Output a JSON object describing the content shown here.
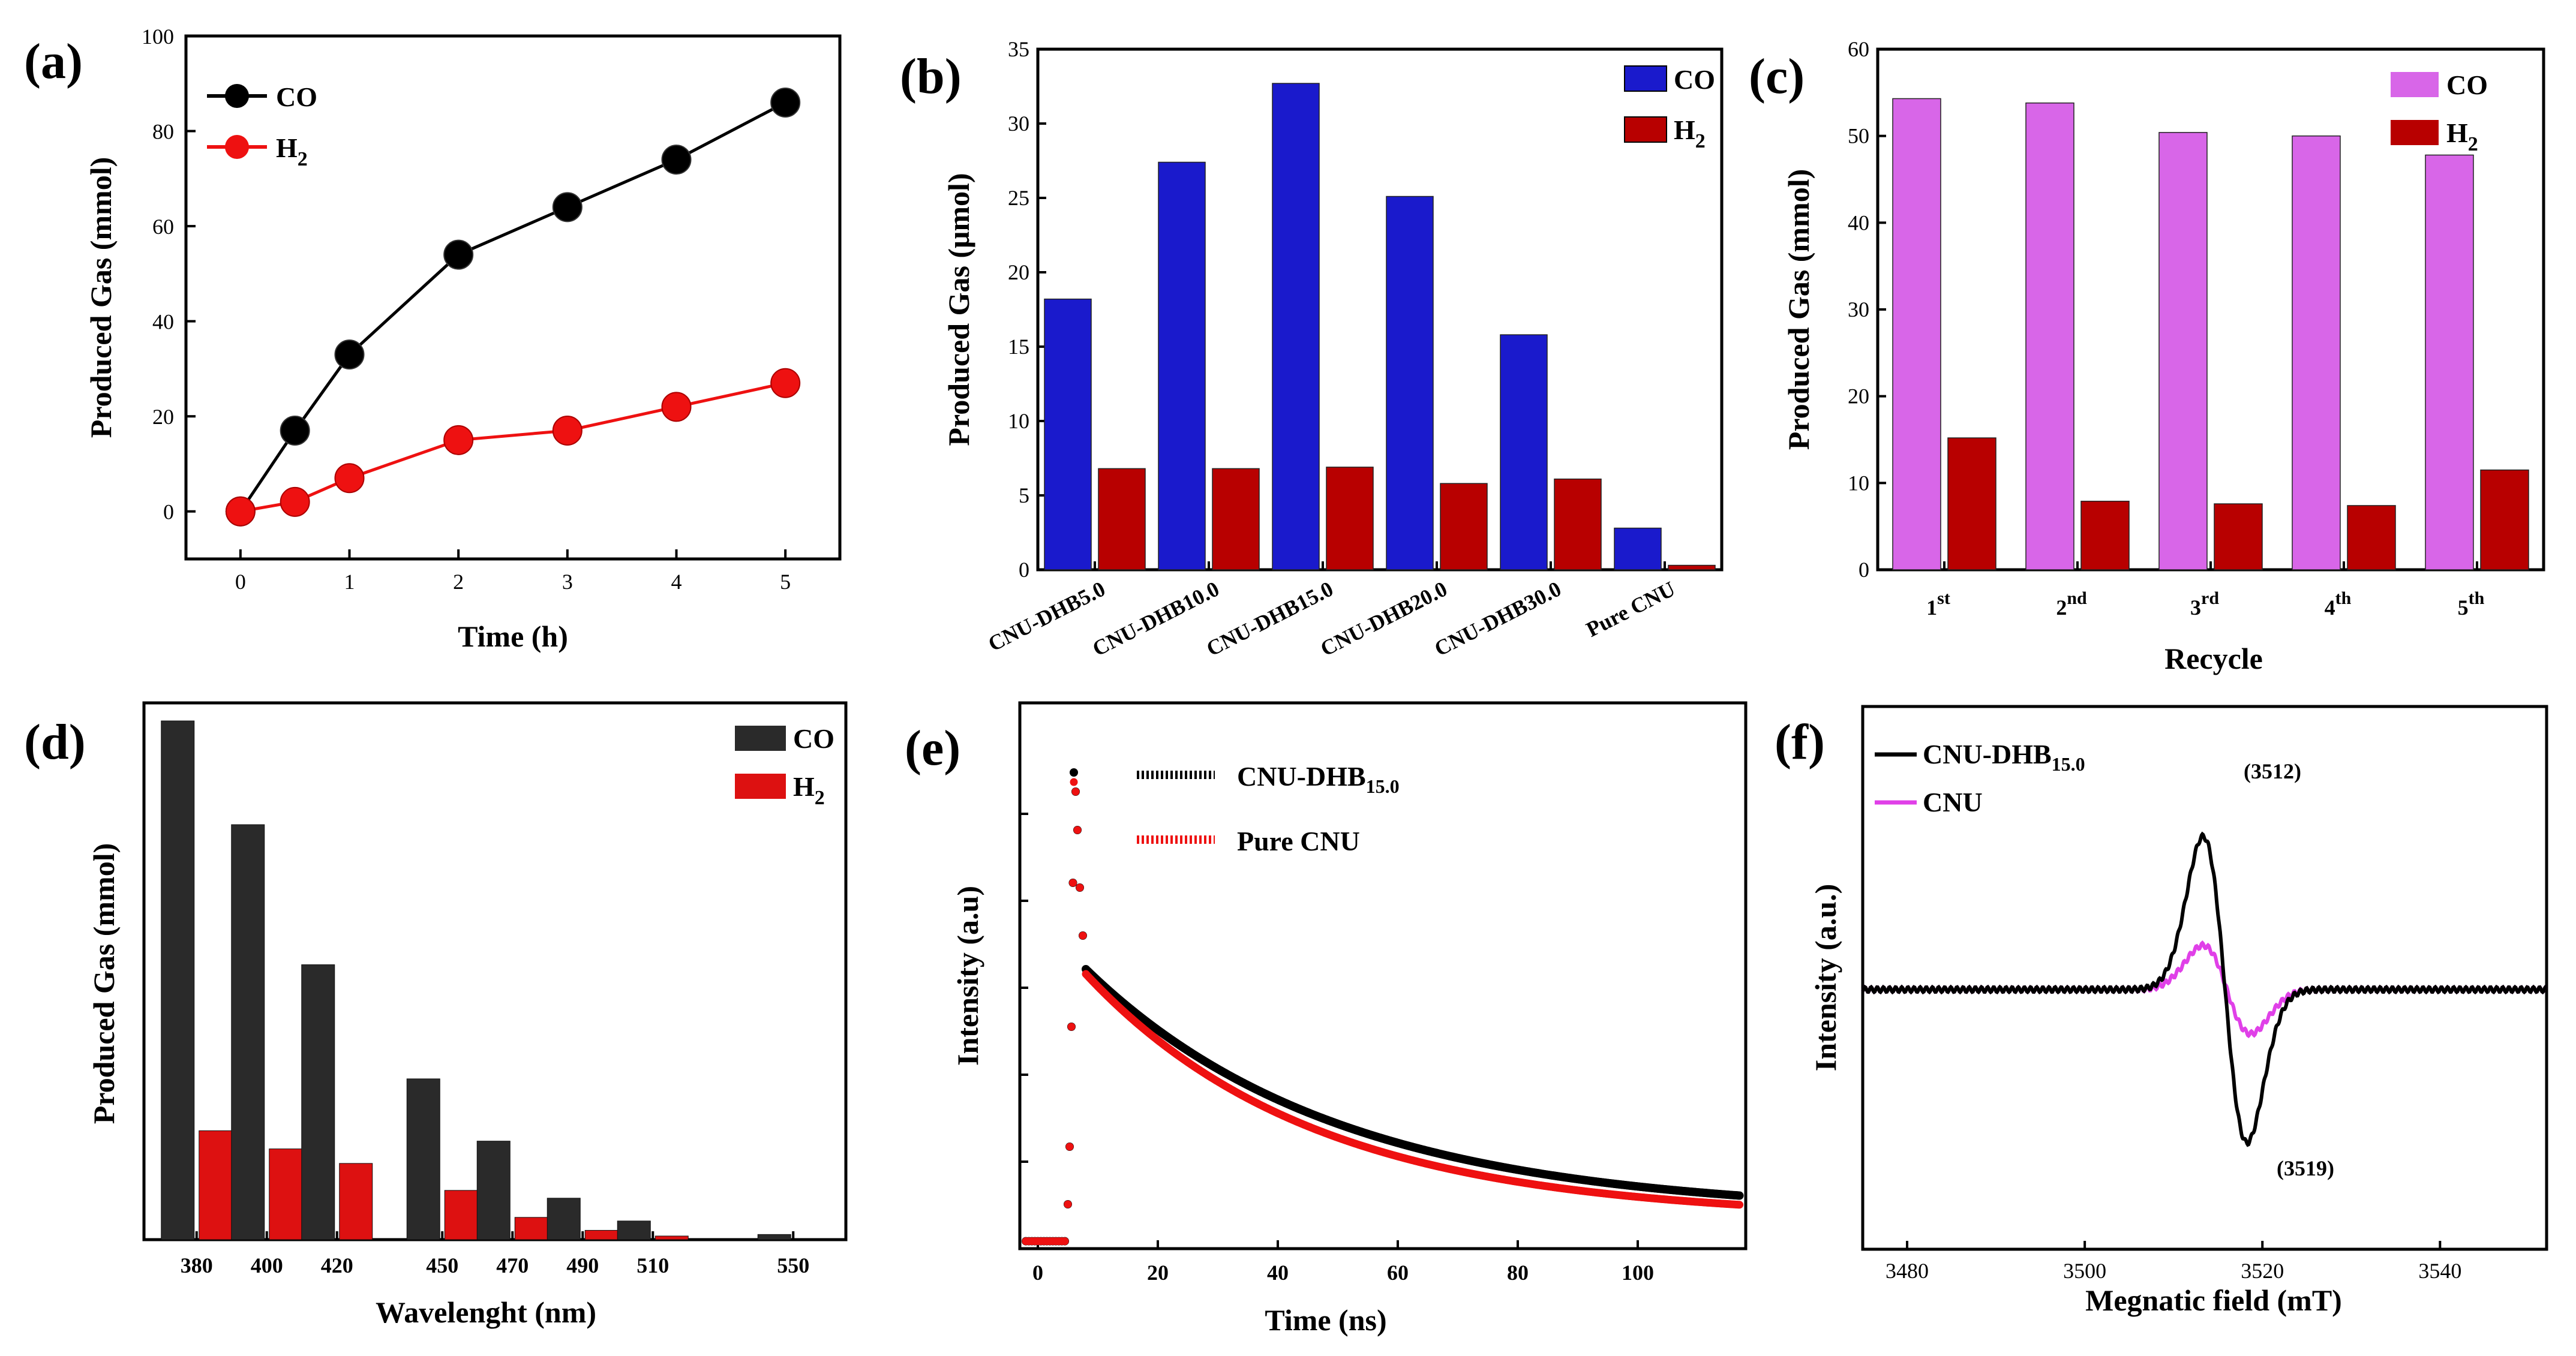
{
  "chart_data": [
    {
      "panel": "(a)",
      "type": "line",
      "xlabel": "Time (h)",
      "ylabel": "Produced Gas (mmol)",
      "x": [
        0,
        0.5,
        1,
        2,
        3,
        4,
        5
      ],
      "xticks": [
        "0",
        "1",
        "2",
        "3",
        "4",
        "5"
      ],
      "yticks": [
        "0",
        "20",
        "40",
        "60",
        "80",
        "100"
      ],
      "xlim": [
        -0.5,
        5.5
      ],
      "ylim": [
        -10,
        100
      ],
      "series": [
        {
          "name": "CO",
          "color": "#000000",
          "values": [
            0,
            17,
            33,
            54,
            64,
            74,
            86
          ]
        },
        {
          "name": "H2",
          "legend_main": "H",
          "legend_sub": "2",
          "color": "#ee1111",
          "values": [
            0,
            2,
            7,
            15,
            17,
            22,
            27
          ]
        }
      ]
    },
    {
      "panel": "(b)",
      "type": "bar",
      "ylabel": "Produced Gas (μmol)",
      "categories": [
        "CNU-DHB5.0",
        "CNU-DHB10.0",
        "CNU-DHB15.0",
        "CNU-DHB20.0",
        "CNU-DHB30.0",
        "Pure CNU"
      ],
      "yticks": [
        "0",
        "5",
        "10",
        "15",
        "20",
        "25",
        "30",
        "35"
      ],
      "ylim": [
        0,
        35
      ],
      "series": [
        {
          "name": "CO",
          "color": "#1a1acc",
          "values": [
            18.2,
            27.4,
            32.7,
            25.1,
            15.8,
            2.8
          ]
        },
        {
          "name": "H2",
          "legend_main": "H",
          "legend_sub": "2",
          "color": "#b80000",
          "values": [
            6.8,
            6.8,
            6.9,
            5.8,
            6.1,
            0.3
          ]
        }
      ]
    },
    {
      "panel": "(c)",
      "type": "bar",
      "xlabel": "Recycle",
      "ylabel": "Produced Gas (mmol)",
      "categories": [
        "1st",
        "2nd",
        "3rd",
        "4th",
        "5th"
      ],
      "category_main": [
        "1",
        "2",
        "3",
        "4",
        "5"
      ],
      "category_sup": [
        "st",
        "nd",
        "rd",
        "th",
        "th"
      ],
      "yticks": [
        "0",
        "10",
        "20",
        "30",
        "40",
        "50",
        "60"
      ],
      "ylim": [
        0,
        60
      ],
      "series": [
        {
          "name": "CO",
          "color": "#d866e8",
          "values": [
            54.3,
            53.8,
            50.4,
            50.0,
            47.8
          ]
        },
        {
          "name": "H2",
          "legend_main": "H",
          "legend_sub": "2",
          "color": "#b80000",
          "values": [
            15.2,
            7.9,
            7.6,
            7.4,
            11.5
          ]
        }
      ]
    },
    {
      "panel": "(d)",
      "type": "bar",
      "xlabel": "Wavelenght (nm)",
      "ylabel": "Produced Gas (mmol)",
      "categories": [
        "380",
        "400",
        "420",
        "450",
        "470",
        "490",
        "510",
        "550"
      ],
      "category_positions": [
        380,
        400,
        420,
        450,
        470,
        490,
        510,
        550
      ],
      "xlim": [
        365,
        565
      ],
      "ylim": [
        0,
        100
      ],
      "series": [
        {
          "name": "CO",
          "color": "#2a2a2a",
          "values": [
            100,
            80,
            53,
            31,
            19,
            8,
            3.6,
            1
          ]
        },
        {
          "name": "H2",
          "legend_main": "H",
          "legend_sub": "2",
          "color": "#dd1111",
          "values": [
            21,
            17.5,
            14.7,
            9.5,
            4.3,
            1.8,
            0.7,
            0
          ]
        }
      ]
    },
    {
      "panel": "(e)",
      "type": "scatter",
      "xlabel": "Time (ns)",
      "ylabel": "Intensity (a.u)",
      "xticks": [
        "0",
        "20",
        "40",
        "60",
        "80",
        "100"
      ],
      "xlim": [
        -3,
        118
      ],
      "ylim": [
        0,
        100
      ],
      "series": [
        {
          "name": "CNU-DHB15.0",
          "legend_main": "CNU-DHB",
          "legend_sub": "15.0",
          "color": "#000000",
          "peak_time": 6.0,
          "peak_value": 98,
          "baseline": 0,
          "plateau_start": 8,
          "plateau_value": 57,
          "decay_ns": 42,
          "offset": 6
        },
        {
          "name": "Pure CNU",
          "color": "#ee1111",
          "peak_time": 6.0,
          "peak_value": 96,
          "baseline": 0,
          "plateau_start": 8,
          "plateau_value": 56,
          "decay_ns": 38,
          "offset": 5
        }
      ]
    },
    {
      "panel": "(f)",
      "type": "line",
      "xlabel": "Megnatic field (mT)",
      "ylabel": "Intensity (a.u.)",
      "xticks": [
        "3480",
        "3500",
        "3520",
        "3540"
      ],
      "xlim": [
        3475,
        3552
      ],
      "ylim": [
        -60,
        60
      ],
      "annotations": [
        "(3512)",
        "(3519)"
      ],
      "series": [
        {
          "name": "CNU-DHB15.0",
          "legend_main": "CNU-DHB",
          "legend_sub": "15.0",
          "color": "#000000",
          "center": 3515.8,
          "width": 3.5,
          "amplitude": 52
        },
        {
          "name": "CNU",
          "color": "#e040e8",
          "center": 3516.0,
          "width": 3.8,
          "amplitude": 15
        }
      ]
    }
  ]
}
